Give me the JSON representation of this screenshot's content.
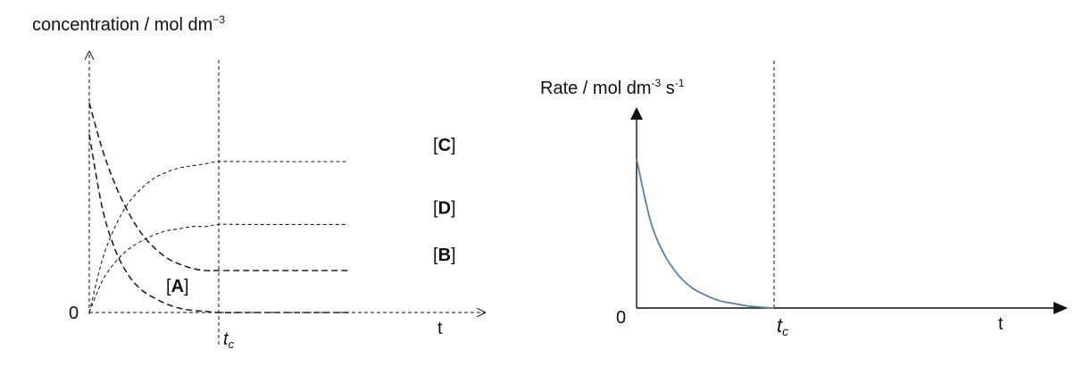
{
  "colors": {
    "axis": "#111111",
    "dashed_curve": "#222222",
    "rate_curve": "#5a7fa8"
  },
  "chart_data": [
    {
      "type": "line",
      "ylabel_main": "concentration / mol dm",
      "ylabel_sup": "−3",
      "origin_label": "0",
      "xlabel": "t",
      "marker_main": "t",
      "marker_sub": "c",
      "line_style": "dashed",
      "grid": false,
      "x": [
        0,
        0.1,
        0.2,
        0.3,
        0.4,
        0.5,
        0.6,
        0.7,
        0.8,
        0.9,
        1.0,
        1.2,
        1.4,
        1.6,
        1.8,
        2.0
      ],
      "series": [
        {
          "name": "[A]",
          "label_pre": "[",
          "label_mid": "A",
          "label_post": "]",
          "values": [
            0.85,
            0.5,
            0.3,
            0.18,
            0.11,
            0.07,
            0.04,
            0.02,
            0.01,
            0.005,
            0,
            0,
            0,
            0,
            0,
            0
          ]
        },
        {
          "name": "[B]",
          "label_pre": "[",
          "label_mid": "B",
          "label_post": "]",
          "values": [
            1.0,
            0.78,
            0.61,
            0.48,
            0.38,
            0.31,
            0.26,
            0.23,
            0.21,
            0.2,
            0.2,
            0.2,
            0.2,
            0.2,
            0.2,
            0.2
          ]
        },
        {
          "name": "[C]",
          "label_pre": "[",
          "label_mid": "C",
          "label_post": "]",
          "values": [
            0,
            0.25,
            0.41,
            0.52,
            0.59,
            0.64,
            0.67,
            0.69,
            0.7,
            0.71,
            0.72,
            0.72,
            0.72,
            0.72,
            0.72,
            0.72
          ]
        },
        {
          "name": "[D]",
          "label_pre": "[",
          "label_mid": "D",
          "label_post": "]",
          "values": [
            0,
            0.15,
            0.24,
            0.3,
            0.34,
            0.37,
            0.39,
            0.4,
            0.41,
            0.41,
            0.42,
            0.42,
            0.42,
            0.42,
            0.42,
            0.42
          ]
        }
      ],
      "xlim": [
        0,
        2.0
      ],
      "ylim": [
        0,
        1.15
      ],
      "tc": 1.0
    },
    {
      "type": "line",
      "ylabel_main": "Rate / mol dm",
      "ylabel_sup1": "-3",
      "ylabel_mid": " s",
      "ylabel_sup2": "-1",
      "origin_label": "0",
      "xlabel": "t",
      "marker_main": "t",
      "marker_sub": "c",
      "grid": false,
      "x": [
        0,
        0.1,
        0.2,
        0.3,
        0.4,
        0.5,
        0.6,
        0.7,
        0.8,
        0.9,
        1.0
      ],
      "series": [
        {
          "values": [
            0.8,
            0.47,
            0.29,
            0.18,
            0.11,
            0.07,
            0.04,
            0.025,
            0.012,
            0.005,
            0
          ]
        }
      ],
      "xlim": [
        0,
        2.5
      ],
      "ylim": [
        0,
        1.15
      ],
      "tc": 1.0
    }
  ]
}
